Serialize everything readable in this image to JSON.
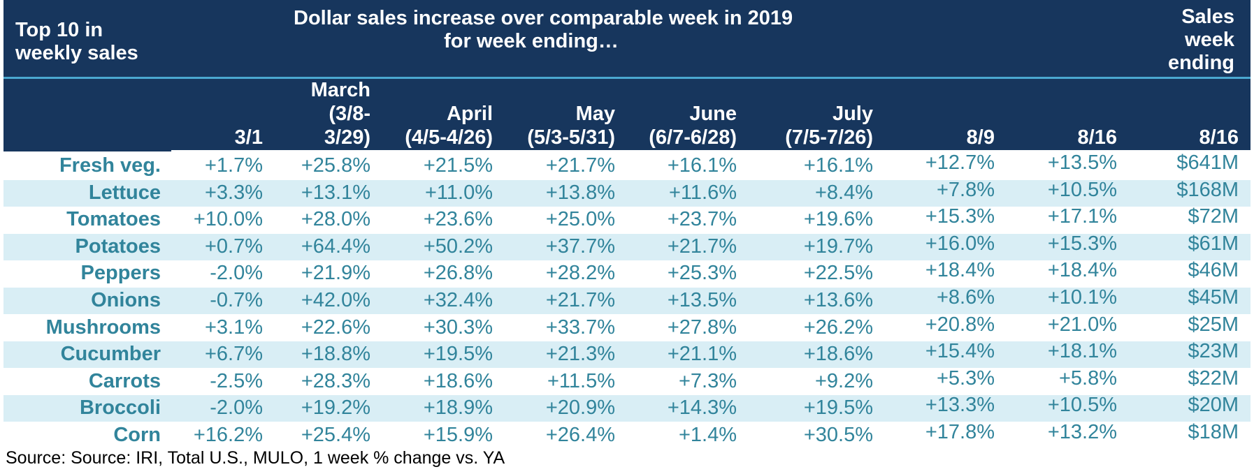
{
  "header": {
    "title_left": [
      "Top 10 in",
      "weekly sales"
    ],
    "title_center": [
      "Dollar sales increase over comparable week in 2019",
      "for week ending…"
    ],
    "title_right": [
      "Sales",
      "week",
      "ending"
    ]
  },
  "columns": [
    [
      "3/1"
    ],
    [
      "March",
      "(3/8-",
      "3/29)"
    ],
    [
      "April",
      "(4/5-4/26)"
    ],
    [
      "May",
      "(5/3-5/31)"
    ],
    [
      "June",
      "(6/7-6/28)"
    ],
    [
      "July",
      "(7/5-7/26)"
    ],
    [
      "8/9"
    ],
    [
      "8/16"
    ],
    [
      "8/16"
    ]
  ],
  "rows": [
    {
      "label": "Fresh veg.",
      "cells": [
        "+1.7%",
        "+25.8%",
        "+21.5%",
        "+21.7%",
        "+16.1%",
        "+16.1%",
        "+12.7%",
        "+13.5%",
        "$641M"
      ]
    },
    {
      "label": "Lettuce",
      "cells": [
        "+3.3%",
        "+13.1%",
        "+11.0%",
        "+13.8%",
        "+11.6%",
        "+8.4%",
        "+7.8%",
        "+10.5%",
        "$168M"
      ]
    },
    {
      "label": "Tomatoes",
      "cells": [
        "+10.0%",
        "+28.0%",
        "+23.6%",
        "+25.0%",
        "+23.7%",
        "+19.6%",
        "+15.3%",
        "+17.1%",
        "$72M"
      ]
    },
    {
      "label": "Potatoes",
      "cells": [
        "+0.7%",
        "+64.4%",
        "+50.2%",
        "+37.7%",
        "+21.7%",
        "+19.7%",
        "+16.0%",
        "+15.3%",
        "$61M"
      ]
    },
    {
      "label": "Peppers",
      "cells": [
        "-2.0%",
        "+21.9%",
        "+26.8%",
        "+28.2%",
        "+25.3%",
        "+22.5%",
        "+18.4%",
        "+18.4%",
        "$46M"
      ]
    },
    {
      "label": "Onions",
      "cells": [
        "-0.7%",
        "+42.0%",
        "+32.4%",
        "+21.7%",
        "+13.5%",
        "+13.6%",
        "+8.6%",
        "+10.1%",
        "$45M"
      ]
    },
    {
      "label": "Mushrooms",
      "cells": [
        "+3.1%",
        "+22.6%",
        "+30.3%",
        "+33.7%",
        "+27.8%",
        "+26.2%",
        "+20.8%",
        "+21.0%",
        "$25M"
      ]
    },
    {
      "label": "Cucumber",
      "cells": [
        "+6.7%",
        "+18.8%",
        "+19.5%",
        "+21.3%",
        "+21.1%",
        "+18.6%",
        "+15.4%",
        "+18.1%",
        "$23M"
      ]
    },
    {
      "label": "Carrots",
      "cells": [
        "-2.5%",
        "+28.3%",
        "+18.6%",
        "+11.5%",
        "+7.3%",
        "+9.2%",
        "+5.3%",
        "+5.8%",
        "$22M"
      ]
    },
    {
      "label": "Broccoli",
      "cells": [
        "-2.0%",
        "+19.2%",
        "+18.9%",
        "+20.9%",
        "+14.3%",
        "+19.5%",
        "+13.3%",
        "+10.5%",
        "$20M"
      ]
    },
    {
      "label": "Corn",
      "cells": [
        "+16.2%",
        "+25.4%",
        "+15.9%",
        "+26.4%",
        "+1.4%",
        "+30.5%",
        "+17.8%",
        "+13.2%",
        "$18M"
      ]
    }
  ],
  "source": "Source: Source: IRI, Total U.S., MULO, 1 week % change vs. YA",
  "colors": {
    "header_bg": "#17365d",
    "separator": "#4aa8d0",
    "stripe": "#d9eef5",
    "text_accent": "#31849b"
  },
  "chart_data": {
    "type": "table",
    "title": "Dollar sales increase over comparable week in 2019 for week ending…",
    "categories": [
      "3/1",
      "March (3/8-3/29)",
      "April (4/5-4/26)",
      "May (5/3-5/31)",
      "June (6/7-6/28)",
      "July (7/5-7/26)",
      "8/9",
      "8/16",
      "Sales week ending 8/16"
    ]
  }
}
